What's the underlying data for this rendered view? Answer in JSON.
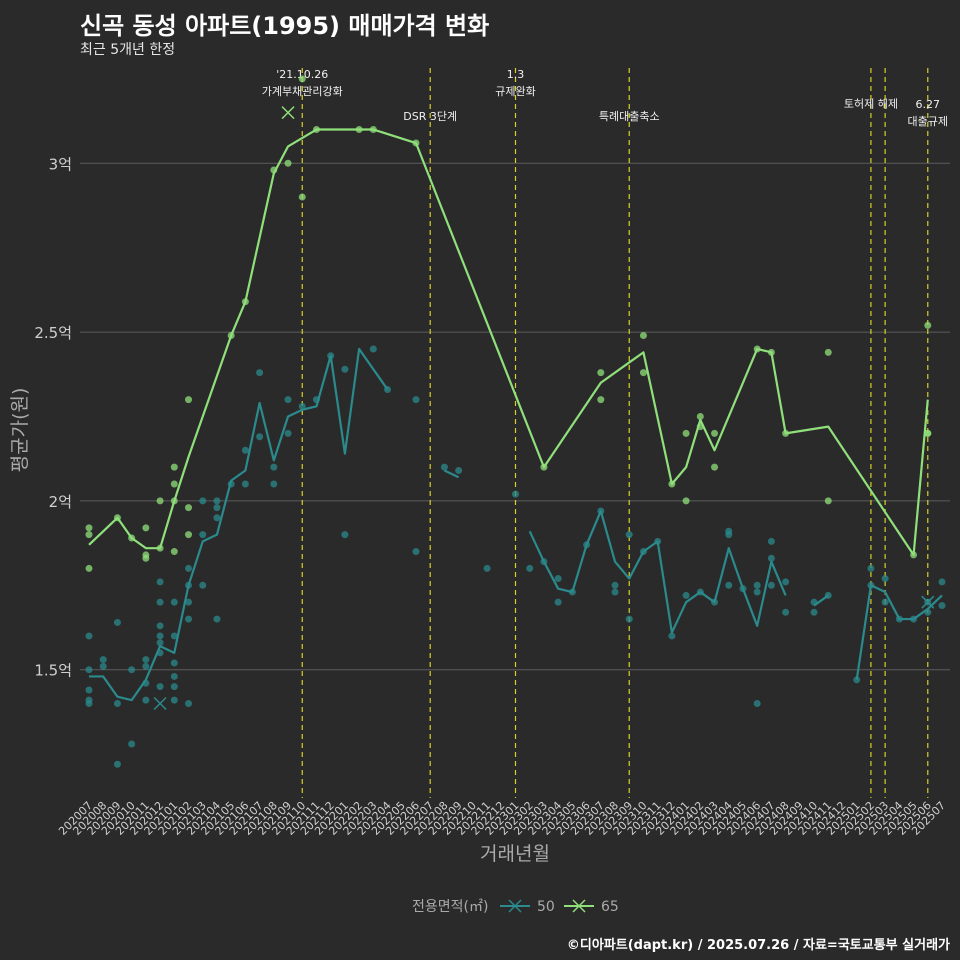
{
  "header": {
    "title": "신곡 동성 아파트(1995) 매매가격 변화",
    "subtitle": "최근 5개년 한정"
  },
  "caption": "©디아파트(dapt.kr) / 2025.07.26 / 자료=국토교통부 실거래가",
  "colors": {
    "background": "#2b2a2b",
    "grid": "#5c5c5c",
    "event_line": "#d6d12a",
    "series_50": "#2a8a8c",
    "series_65": "#8fe07a",
    "axis_text": "#aaaaaa"
  },
  "chart_data": {
    "type": "line",
    "xlabel": "거래년월",
    "ylabel": "평균가(원)",
    "x_categories": [
      "202007",
      "202008",
      "202009",
      "202010",
      "202011",
      "202012",
      "202101",
      "202102",
      "202103",
      "202104",
      "202105",
      "202106",
      "202107",
      "202108",
      "202109",
      "202110",
      "202111",
      "202112",
      "202201",
      "202202",
      "202203",
      "202204",
      "202205",
      "202206",
      "202207",
      "202208",
      "202209",
      "202210",
      "202211",
      "202212",
      "202301",
      "202302",
      "202303",
      "202304",
      "202305",
      "202306",
      "202307",
      "202308",
      "202309",
      "202310",
      "202311",
      "202312",
      "202401",
      "202402",
      "202403",
      "202404",
      "202405",
      "202406",
      "202407",
      "202408",
      "202409",
      "202410",
      "202411",
      "202412",
      "202501",
      "202502",
      "202503",
      "202504",
      "202505",
      "202506",
      "202507"
    ],
    "y_ticks": [
      {
        "value": 150000000,
        "label": "1.5억"
      },
      {
        "value": 200000000,
        "label": "2억"
      },
      {
        "value": 250000000,
        "label": "2.5억"
      },
      {
        "value": 300000000,
        "label": "3억"
      }
    ],
    "ylim": [
      112000000,
      330000000
    ],
    "legend": {
      "title": "전용면적(㎡)",
      "position": "bottom",
      "entries": [
        "50",
        "65"
      ]
    },
    "events": [
      {
        "x": "202110",
        "label": "'21.10.26\n가계부채관리강화",
        "level": 0
      },
      {
        "x": "202207",
        "label": "DSR 3단계",
        "level": 1
      },
      {
        "x": "202301",
        "label": "1.3\n규제완화",
        "level": 0
      },
      {
        "x": "202309",
        "label": "특례대출축소",
        "level": 1
      },
      {
        "x": "202502",
        "label": "토허제 해제",
        "level": 0.5
      },
      {
        "x": "202503",
        "label": "",
        "level": 0
      },
      {
        "x": "202506",
        "label": "6.27\n대출규제",
        "level": 1.2
      }
    ],
    "series": [
      {
        "name": "50",
        "line": [
          [
            "202007",
            148
          ],
          [
            "202008",
            148
          ],
          [
            "202009",
            142
          ],
          [
            "202010",
            141
          ],
          [
            "202011",
            147
          ],
          [
            "202012",
            157
          ],
          [
            "202101",
            155
          ],
          [
            "202102",
            175
          ],
          [
            "202103",
            188
          ],
          [
            "202104",
            190
          ],
          [
            "202105",
            206
          ],
          [
            "202106",
            209
          ],
          [
            "202107",
            229
          ],
          [
            "202108",
            212
          ],
          [
            "202109",
            225
          ],
          [
            "202110",
            227
          ],
          [
            "202111",
            228
          ],
          [
            "202112",
            243
          ],
          [
            "202201",
            214
          ],
          [
            "202202",
            245
          ],
          [
            "202203",
            239
          ],
          [
            "202204",
            233
          ],
          null,
          [
            "202208",
            209
          ],
          [
            "202209",
            207
          ],
          null,
          [
            "202302",
            191
          ],
          [
            "202303",
            182
          ],
          [
            "202304",
            174
          ],
          [
            "202305",
            173
          ],
          [
            "202306",
            187
          ],
          [
            "202307",
            197
          ],
          [
            "202308",
            182
          ],
          [
            "202309",
            177
          ],
          [
            "202310",
            185
          ],
          [
            "202311",
            188
          ],
          [
            "202312",
            161
          ],
          [
            "202401",
            170
          ],
          [
            "202402",
            173
          ],
          [
            "202403",
            170
          ],
          [
            "202404",
            186
          ],
          [
            "202405",
            174
          ],
          [
            "202406",
            163
          ],
          [
            "202407",
            182
          ],
          [
            "202408",
            172
          ],
          null,
          [
            "202410",
            169
          ],
          [
            "202411",
            172
          ],
          null,
          [
            "202501",
            147
          ],
          [
            "202502",
            175
          ],
          [
            "202503",
            173
          ],
          [
            "202504",
            165
          ],
          [
            "202505",
            165
          ],
          [
            "202506",
            168
          ],
          [
            "202507",
            172
          ]
        ],
        "points": [
          [
            "202007",
            141
          ],
          [
            "202007",
            144
          ],
          [
            "202007",
            150
          ],
          [
            "202007",
            160
          ],
          [
            "202007",
            140
          ],
          [
            "202008",
            153
          ],
          [
            "202008",
            151
          ],
          [
            "202009",
            164
          ],
          [
            "202009",
            140
          ],
          [
            "202009",
            122
          ],
          [
            "202010",
            150
          ],
          [
            "202010",
            128
          ],
          [
            "202011",
            153
          ],
          [
            "202011",
            151
          ],
          [
            "202011",
            146
          ],
          [
            "202011",
            141
          ],
          [
            "202012",
            155
          ],
          [
            "202012",
            163
          ],
          [
            "202012",
            170
          ],
          [
            "202012",
            145
          ],
          [
            "202012",
            176
          ],
          [
            "202012",
            158
          ],
          [
            "202012",
            160
          ],
          [
            "202101",
            160
          ],
          [
            "202101",
            170
          ],
          [
            "202101",
            152
          ],
          [
            "202101",
            148
          ],
          [
            "202101",
            145
          ],
          [
            "202101",
            141
          ],
          [
            "202102",
            180
          ],
          [
            "202102",
            175
          ],
          [
            "202102",
            170
          ],
          [
            "202102",
            140
          ],
          [
            "202102",
            165
          ],
          [
            "202103",
            175
          ],
          [
            "202103",
            190
          ],
          [
            "202103",
            200
          ],
          [
            "202104",
            200
          ],
          [
            "202104",
            198
          ],
          [
            "202104",
            195
          ],
          [
            "202104",
            165
          ],
          [
            "202105",
            205
          ],
          [
            "202106",
            205
          ],
          [
            "202106",
            215
          ],
          [
            "202107",
            238
          ],
          [
            "202107",
            219
          ],
          [
            "202108",
            210
          ],
          [
            "202108",
            205
          ],
          [
            "202109",
            230
          ],
          [
            "202109",
            220
          ],
          [
            "202110",
            228
          ],
          [
            "202111",
            230
          ],
          [
            "202112",
            243
          ],
          [
            "202201",
            239
          ],
          [
            "202201",
            190
          ],
          [
            "202203",
            245
          ],
          [
            "202204",
            233
          ],
          [
            "202206",
            230
          ],
          [
            "202206",
            185
          ],
          [
            "202208",
            210
          ],
          [
            "202209",
            209
          ],
          [
            "202211",
            180
          ],
          [
            "202301",
            202
          ],
          [
            "202302",
            180
          ],
          [
            "202303",
            182
          ],
          [
            "202304",
            177
          ],
          [
            "202304",
            170
          ],
          [
            "202305",
            173
          ],
          [
            "202306",
            187
          ],
          [
            "202307",
            197
          ],
          [
            "202308",
            175
          ],
          [
            "202308",
            173
          ],
          [
            "202309",
            190
          ],
          [
            "202309",
            165
          ],
          [
            "202310",
            185
          ],
          [
            "202311",
            188
          ],
          [
            "202312",
            160
          ],
          [
            "202401",
            172
          ],
          [
            "202402",
            173
          ],
          [
            "202403",
            170
          ],
          [
            "202404",
            191
          ],
          [
            "202404",
            190
          ],
          [
            "202404",
            175
          ],
          [
            "202405",
            174
          ],
          [
            "202406",
            175
          ],
          [
            "202406",
            173
          ],
          [
            "202406",
            140
          ],
          [
            "202407",
            188
          ],
          [
            "202407",
            183
          ],
          [
            "202407",
            175
          ],
          [
            "202408",
            176
          ],
          [
            "202408",
            167
          ],
          [
            "202410",
            170
          ],
          [
            "202410",
            167
          ],
          [
            "202411",
            172
          ],
          [
            "202501",
            147
          ],
          [
            "202502",
            180
          ],
          [
            "202502",
            175
          ],
          [
            "202503",
            177
          ],
          [
            "202503",
            170
          ],
          [
            "202504",
            165
          ],
          [
            "202505",
            165
          ],
          [
            "202506",
            170
          ],
          [
            "202506",
            167
          ],
          [
            "202507",
            176
          ],
          [
            "202507",
            169
          ]
        ],
        "cancelled": [
          [
            "202012",
            140
          ],
          [
            "202506",
            170
          ]
        ]
      },
      {
        "name": "65",
        "line": [
          [
            "202007",
            187
          ],
          [
            "202009",
            195
          ],
          [
            "202010",
            189
          ],
          [
            "202011",
            186
          ],
          [
            "202012",
            186
          ],
          [
            "202101",
            200
          ],
          [
            "202102",
            213
          ],
          [
            "202105",
            249
          ],
          [
            "202106",
            259
          ],
          [
            "202108",
            297
          ],
          [
            "202109",
            305
          ],
          [
            "202111",
            310
          ],
          [
            "202203",
            310
          ],
          [
            "202206",
            306
          ],
          [
            "202303",
            210
          ],
          [
            "202307",
            235
          ],
          [
            "202310",
            244
          ],
          [
            "202312",
            205
          ],
          [
            "202401",
            210
          ],
          [
            "202402",
            224
          ],
          [
            "202403",
            215
          ],
          [
            "202406",
            245
          ],
          [
            "202407",
            244
          ],
          [
            "202408",
            220
          ],
          [
            "202411",
            222
          ],
          [
            "202505",
            184
          ],
          [
            "202506",
            230
          ]
        ],
        "points": [
          [
            "202007",
            192
          ],
          [
            "202007",
            190
          ],
          [
            "202007",
            180
          ],
          [
            "202009",
            195
          ],
          [
            "202010",
            189
          ],
          [
            "202011",
            184
          ],
          [
            "202011",
            183
          ],
          [
            "202011",
            192
          ],
          [
            "202012",
            186
          ],
          [
            "202012",
            200
          ],
          [
            "202101",
            210
          ],
          [
            "202101",
            205
          ],
          [
            "202101",
            200
          ],
          [
            "202101",
            185
          ],
          [
            "202102",
            230
          ],
          [
            "202102",
            198
          ],
          [
            "202102",
            190
          ],
          [
            "202105",
            249
          ],
          [
            "202106",
            259
          ],
          [
            "202108",
            298
          ],
          [
            "202109",
            300
          ],
          [
            "202110",
            325
          ],
          [
            "202110",
            290
          ],
          [
            "202111",
            310
          ],
          [
            "202202",
            310
          ],
          [
            "202203",
            310
          ],
          [
            "202206",
            306
          ],
          [
            "202303",
            210
          ],
          [
            "202307",
            238
          ],
          [
            "202307",
            230
          ],
          [
            "202310",
            249
          ],
          [
            "202310",
            238
          ],
          [
            "202312",
            205
          ],
          [
            "202401",
            220
          ],
          [
            "202401",
            200
          ],
          [
            "202402",
            225
          ],
          [
            "202402",
            222
          ],
          [
            "202403",
            220
          ],
          [
            "202403",
            210
          ],
          [
            "202406",
            245
          ],
          [
            "202407",
            244
          ],
          [
            "202408",
            220
          ],
          [
            "202411",
            244
          ],
          [
            "202411",
            200
          ],
          [
            "202505",
            184
          ],
          [
            "202506",
            252
          ],
          [
            "202506",
            220
          ],
          [
            "202506",
            220
          ]
        ],
        "cancelled": [
          [
            "202109",
            315
          ]
        ]
      }
    ]
  }
}
